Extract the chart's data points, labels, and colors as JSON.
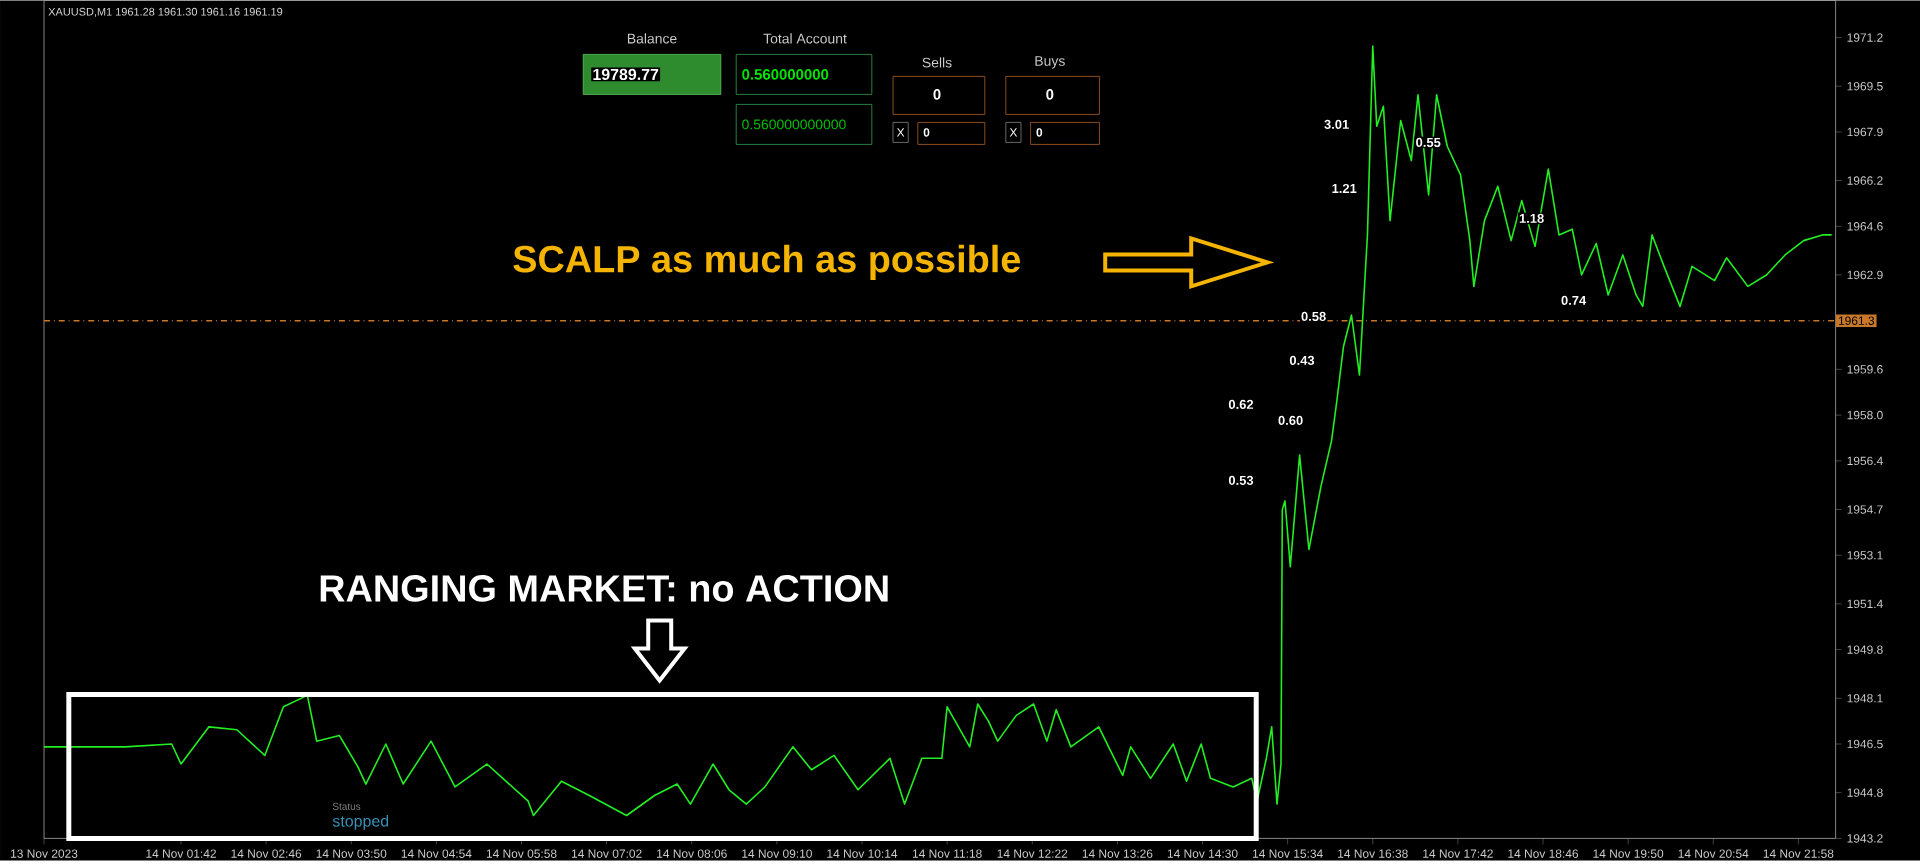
{
  "chart_data": {
    "type": "line",
    "title": "XAUUSD,M1  1961.28 1961.30 1961.16 1961.19",
    "color": "#22ee22",
    "x": [
      "2023-11-13T23:59",
      "2023-11-14T01:00",
      "2023-11-14T01:35",
      "2023-11-14T01:42",
      "2023-11-14T02:03",
      "2023-11-14T02:24",
      "2023-11-14T02:45",
      "2023-11-14T02:59",
      "2023-11-14T03:17",
      "2023-11-14T03:24",
      "2023-11-14T03:41",
      "2023-11-14T03:55",
      "2023-11-14T04:01",
      "2023-11-14T04:16",
      "2023-11-14T04:29",
      "2023-11-14T04:50",
      "2023-11-14T05:08",
      "2023-11-14T05:32",
      "2023-11-14T06:03",
      "2023-11-14T06:07",
      "2023-11-14T06:28",
      "2023-11-14T06:49",
      "2023-11-14T07:17",
      "2023-11-14T07:38",
      "2023-11-14T07:55",
      "2023-11-14T08:05",
      "2023-11-14T08:22",
      "2023-11-14T08:34",
      "2023-11-14T08:47",
      "2023-11-14T09:01",
      "2023-11-14T09:22",
      "2023-11-14T09:36",
      "2023-11-14T09:53",
      "2023-11-14T10:11",
      "2023-11-14T10:35",
      "2023-11-14T10:46",
      "2023-11-14T10:59",
      "2023-11-14T11:14",
      "2023-11-14T11:18",
      "2023-11-14T11:35",
      "2023-11-14T11:41",
      "2023-11-14T11:49",
      "2023-11-14T11:56",
      "2023-11-14T12:10",
      "2023-11-14T12:23",
      "2023-11-14T12:33",
      "2023-11-14T12:40",
      "2023-11-14T12:51",
      "2023-11-14T13:12",
      "2023-11-14T13:30",
      "2023-11-14T13:36",
      "2023-11-14T13:51",
      "2023-11-14T14:08",
      "2023-11-14T14:18",
      "2023-11-14T14:29",
      "2023-11-14T14:36",
      "2023-11-14T14:53",
      "2023-11-14T15:07",
      "2023-11-14T15:11",
      "2023-11-14T15:18",
      "2023-11-14T15:22",
      "2023-11-14T15:26",
      "2023-11-14T15:29",
      "2023-11-14T15:30",
      "2023-11-14T15:32",
      "2023-11-14T15:36",
      "2023-11-14T15:43",
      "2023-11-14T15:50",
      "2023-11-14T15:59",
      "2023-11-14T16:07",
      "2023-11-14T16:11",
      "2023-11-14T16:16",
      "2023-11-14T16:22",
      "2023-11-14T16:28",
      "2023-11-14T16:34",
      "2023-11-14T16:38",
      "2023-11-14T16:41",
      "2023-11-14T16:46",
      "2023-11-14T16:51",
      "2023-11-14T16:59",
      "2023-11-14T17:07",
      "2023-11-14T17:12",
      "2023-11-14T17:20",
      "2023-11-14T17:26",
      "2023-11-14T17:34",
      "2023-11-14T17:44",
      "2023-11-14T17:51",
      "2023-11-14T17:54",
      "2023-11-14T18:02",
      "2023-11-14T18:12",
      "2023-11-14T18:22",
      "2023-11-14T18:30",
      "2023-11-14T18:40",
      "2023-11-14T18:50",
      "2023-11-14T18:58",
      "2023-11-14T19:08",
      "2023-11-14T19:15",
      "2023-11-14T19:26",
      "2023-11-14T19:35",
      "2023-11-14T19:46",
      "2023-11-14T19:56",
      "2023-11-14T20:01",
      "2023-11-14T20:08",
      "2023-11-14T20:17",
      "2023-11-14T20:29",
      "2023-11-14T20:38",
      "2023-11-14T20:55",
      "2023-11-14T21:04",
      "2023-11-14T21:20",
      "2023-11-14T21:34",
      "2023-11-14T21:48",
      "2023-11-14T22:02",
      "2023-11-14T22:16",
      "2023-11-14T22:23"
    ],
    "values": [
      1946.4,
      1946.4,
      1946.5,
      1945.8,
      1947.1,
      1947.0,
      1946.1,
      1947.8,
      1948.2,
      1946.6,
      1946.8,
      1945.7,
      1945.1,
      1946.5,
      1945.1,
      1946.6,
      1945.0,
      1945.8,
      1944.5,
      1944.0,
      1945.2,
      1944.7,
      1944.0,
      1944.7,
      1945.1,
      1944.4,
      1945.8,
      1944.9,
      1944.4,
      1945.0,
      1946.4,
      1945.6,
      1946.1,
      1944.9,
      1946.0,
      1944.4,
      1946.0,
      1946.0,
      1947.8,
      1946.4,
      1947.9,
      1947.3,
      1946.6,
      1947.5,
      1947.9,
      1946.6,
      1947.7,
      1946.4,
      1947.1,
      1945.4,
      1946.4,
      1945.3,
      1946.5,
      1945.2,
      1946.5,
      1945.3,
      1945.0,
      1945.3,
      1944.5,
      1946.0,
      1947.1,
      1944.4,
      1945.8,
      1954.7,
      1955.0,
      1952.7,
      1956.6,
      1953.3,
      1955.5,
      1957.1,
      1958.5,
      1960.4,
      1961.5,
      1959.4,
      1964.3,
      1970.9,
      1968.1,
      1968.8,
      1964.8,
      1968.3,
      1966.9,
      1969.2,
      1965.7,
      1969.2,
      1967.4,
      1966.4,
      1964.1,
      1962.5,
      1964.8,
      1966.0,
      1964.1,
      1965.5,
      1963.9,
      1966.6,
      1964.3,
      1964.5,
      1962.9,
      1964.0,
      1962.2,
      1963.6,
      1962.2,
      1961.8,
      1964.3,
      1963.2,
      1961.8,
      1963.2,
      1962.7,
      1963.5,
      1962.5,
      1962.9,
      1963.6,
      1964.1,
      1964.3,
      1964.3
    ],
    "xlim": [
      "2023-11-13T23:59",
      "2023-11-14T22:26"
    ],
    "ylim": [
      1943.2,
      1972.5
    ],
    "xticks": [
      {
        "value": "2023-11-13T23:59",
        "label": "13 Nov 2023"
      },
      {
        "value": "2023-11-14T01:42",
        "label": "14 Nov 01:42"
      },
      {
        "value": "2023-11-14T02:46",
        "label": "14 Nov 02:46"
      },
      {
        "value": "2023-11-14T03:50",
        "label": "14 Nov 03:50"
      },
      {
        "value": "2023-11-14T04:54",
        "label": "14 Nov 04:54"
      },
      {
        "value": "2023-11-14T05:58",
        "label": "14 Nov 05:58"
      },
      {
        "value": "2023-11-14T07:02",
        "label": "14 Nov 07:02"
      },
      {
        "value": "2023-11-14T08:06",
        "label": "14 Nov 08:06"
      },
      {
        "value": "2023-11-14T09:10",
        "label": "14 Nov 09:10"
      },
      {
        "value": "2023-11-14T10:14",
        "label": "14 Nov 10:14"
      },
      {
        "value": "2023-11-14T11:18",
        "label": "14 Nov 11:18"
      },
      {
        "value": "2023-11-14T12:22",
        "label": "14 Nov 12:22"
      },
      {
        "value": "2023-11-14T13:26",
        "label": "14 Nov 13:26"
      },
      {
        "value": "2023-11-14T14:30",
        "label": "14 Nov 14:30"
      },
      {
        "value": "2023-11-14T15:34",
        "label": "14 Nov 15:34"
      },
      {
        "value": "2023-11-14T16:38",
        "label": "14 Nov 16:38"
      },
      {
        "value": "2023-11-14T17:42",
        "label": "14 Nov 17:42"
      },
      {
        "value": "2023-11-14T18:46",
        "label": "14 Nov 18:46"
      },
      {
        "value": "2023-11-14T19:50",
        "label": "14 Nov 19:50"
      },
      {
        "value": "2023-11-14T20:54",
        "label": "14 Nov 20:54"
      },
      {
        "value": "2023-11-14T21:58",
        "label": "14 Nov 21:58"
      }
    ],
    "yticks": [
      1943.2,
      1944.8,
      1946.5,
      1948.1,
      1949.8,
      1951.4,
      1953.1,
      1954.7,
      1956.4,
      {
        "value": 1958.0,
        "label": "1958.0"
      },
      1959.6,
      1962.9,
      1964.6,
      1966.2,
      1967.9,
      1969.5,
      1971.2
    ],
    "ref_lines": [
      {
        "axis": "y",
        "value": 1961.3,
        "label": "1961.3",
        "color": "#c87828",
        "line_style": "dashed"
      }
    ],
    "annotations": [
      "SCALP as much as possible",
      "RANGING MARKET: no ACTION",
      "Balance",
      "19789.77",
      "Total Account",
      "0.560000000",
      "0.560000000000",
      "Sells",
      "0",
      "Buys",
      "0",
      "X",
      "0",
      "X",
      "0",
      "Status",
      "stopped",
      "3.01",
      "0.55",
      "1.21",
      "1.18",
      "0.74",
      "0.58",
      "0.43",
      "0.62",
      "0.60",
      "0.53"
    ]
  }
}
